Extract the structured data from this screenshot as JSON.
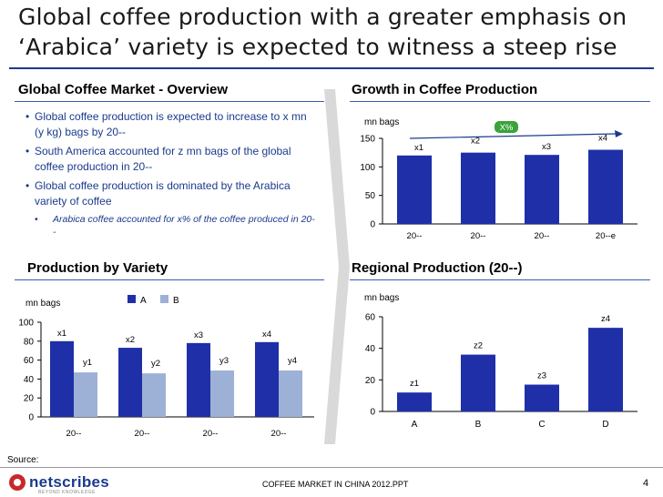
{
  "header": {
    "title_line1": "Global coffee production with a greater emphasis on",
    "title_line2": "‘Arabica’ variety is expected to witness a steep rise"
  },
  "overview": {
    "heading": "Global Coffee Market - Overview",
    "bullets": [
      "Global coffee production is expected to increase to x mn (y kg) bags by 20--",
      "South America accounted for z mn bags of the global coffee production in 20--",
      "Global coffee production is dominated by the Arabica variety of coffee"
    ],
    "sub_bullet": "Arabica coffee accounted for x% of the coffee produced in 20--"
  },
  "sections": {
    "growth_heading": "Growth in Coffee Production",
    "variety_heading": "Production by Variety",
    "regional_heading": "Regional Production (20--)"
  },
  "footer": {
    "source": "Source:",
    "logo_text": "netscribes",
    "logo_tagline": "BEYOND KNOWLEDGE",
    "document": "COFFEE MARKET IN CHINA 2012.PPT",
    "page": "4"
  },
  "colors": {
    "bar_primary": "#1f2fa8",
    "bar_secondary": "#9db0d6",
    "growth_badge": "#3aa33a",
    "title_rule": "#1a3a8c",
    "arrow": "#d9d9d9"
  },
  "icons": {
    "transition_arrow": "chevron-right-icon",
    "logo": "netscribes-logo-icon"
  },
  "chart_data": [
    {
      "id": "growth",
      "type": "bar",
      "ylabel": "mn bags",
      "categories": [
        "20--",
        "20--",
        "20--",
        "20--e"
      ],
      "values": [
        120,
        125,
        121,
        130
      ],
      "data_labels": [
        "x1",
        "x2",
        "x3",
        "x4"
      ],
      "ylim": [
        0,
        150
      ],
      "yticks": [
        0,
        50,
        100,
        150
      ],
      "annotation": "X%",
      "grid": false
    },
    {
      "id": "variety",
      "type": "bar",
      "ylabel": "mn bags",
      "categories": [
        "20--",
        "20--",
        "20--",
        "20--"
      ],
      "series": [
        {
          "name": "A",
          "values": [
            80,
            73,
            78,
            79
          ],
          "labels": [
            "x1",
            "x2",
            "x3",
            "x4"
          ]
        },
        {
          "name": "B",
          "values": [
            47,
            46,
            49,
            49
          ],
          "labels": [
            "y1",
            "y2",
            "y3",
            "y4"
          ]
        }
      ],
      "ylim": [
        0,
        100
      ],
      "yticks": [
        0,
        20,
        40,
        60,
        80,
        100
      ],
      "legend": "top",
      "grid": false
    },
    {
      "id": "regional",
      "type": "bar",
      "ylabel": "mn bags",
      "categories": [
        "A",
        "B",
        "C",
        "D"
      ],
      "values": [
        12,
        36,
        17,
        53
      ],
      "data_labels": [
        "z1",
        "z2",
        "z3",
        "z4"
      ],
      "ylim": [
        0,
        60
      ],
      "yticks": [
        0,
        20,
        40,
        60
      ],
      "grid": false
    }
  ]
}
